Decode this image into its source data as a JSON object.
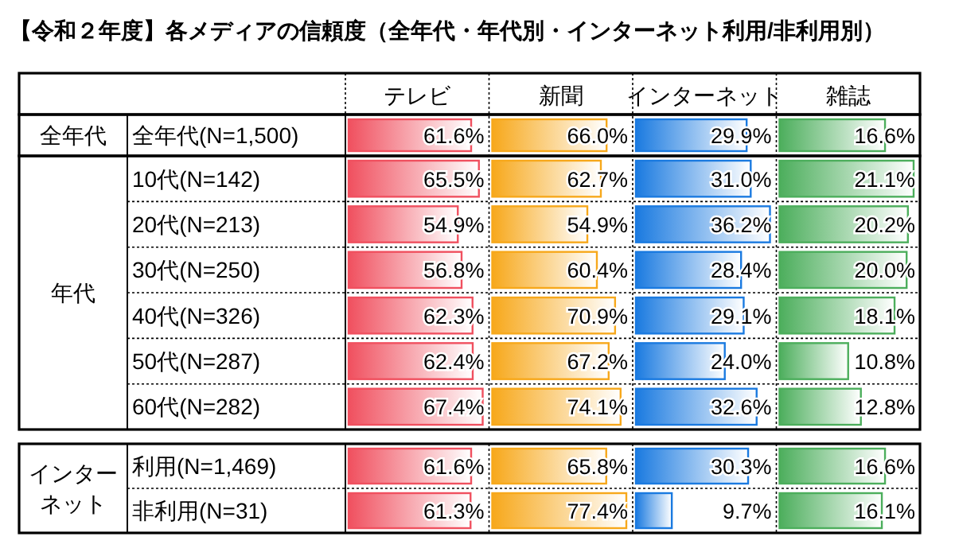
{
  "chart_data": [
    {
      "type": "other",
      "title": "【令和２年度】各メディアの信頼度（全年代・年代別・インターネット利用/非利用別）",
      "annotations": [
        "全年代",
        "年代",
        "インターネット"
      ]
    },
    {
      "type": "bar",
      "orientation": "horizontal",
      "title": "テレビ",
      "color": "#f0505f",
      "categories": [
        "全年代(N=1,500)",
        "10代(N=142)",
        "20代(N=213)",
        "30代(N=250)",
        "40代(N=326)",
        "50代(N=287)",
        "60代(N=282)",
        "利用(N=1,469)",
        "非利用(N=31)"
      ],
      "values": [
        61.6,
        65.5,
        54.9,
        56.8,
        62.3,
        62.4,
        67.4,
        61.6,
        61.3
      ],
      "value_labels": [
        "61.6%",
        "65.5%",
        "54.9%",
        "56.8%",
        "62.3%",
        "62.4%",
        "67.4%",
        "61.6%",
        "61.3%"
      ]
    },
    {
      "type": "bar",
      "orientation": "horizontal",
      "title": "新聞",
      "color": "#f7a81b",
      "categories": [
        null,
        null,
        null,
        null,
        null,
        null,
        null,
        null,
        null
      ],
      "values": [
        66.0,
        62.7,
        54.9,
        60.4,
        70.9,
        67.2,
        74.1,
        65.8,
        77.4
      ],
      "value_labels": [
        "66.0%",
        "62.7%",
        "54.9%",
        "60.4%",
        "70.9%",
        "67.2%",
        "74.1%",
        "65.8%",
        "77.4%"
      ]
    },
    {
      "type": "bar",
      "orientation": "horizontal",
      "title": "インターネット",
      "color": "#1a7ae0",
      "categories": [
        null,
        null,
        null,
        null,
        null,
        null,
        null,
        null,
        null
      ],
      "values": [
        29.9,
        31.0,
        36.2,
        28.4,
        29.1,
        24.0,
        32.6,
        30.3,
        9.7
      ],
      "value_labels": [
        "29.9%",
        "31.0%",
        "36.2%",
        "28.4%",
        "29.1%",
        "24.0%",
        "32.6%",
        "30.3%",
        "9.7%"
      ]
    },
    {
      "type": "bar",
      "orientation": "horizontal",
      "title": "雑誌",
      "color": "#4cae5c",
      "categories": [
        null,
        null,
        null,
        null,
        null,
        null,
        null,
        null,
        null
      ],
      "values": [
        16.6,
        21.1,
        20.2,
        20.0,
        18.1,
        10.8,
        12.8,
        16.6,
        16.1
      ],
      "value_labels": [
        "16.6%",
        "21.1%",
        "20.2%",
        "20.0%",
        "18.1%",
        "10.8%",
        "12.8%",
        "16.6%",
        "16.1%"
      ]
    }
  ]
}
